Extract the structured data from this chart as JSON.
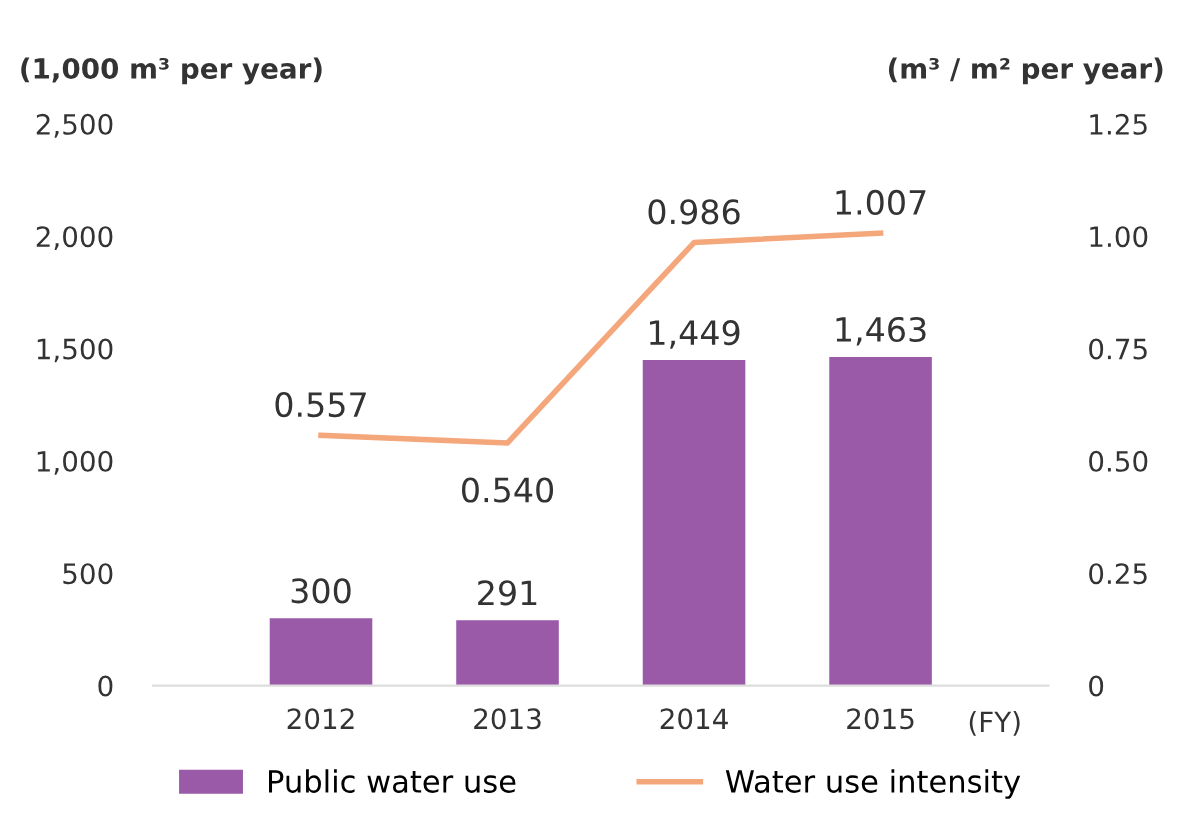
{
  "chart_data": {
    "type": "bar",
    "categories": [
      "2012",
      "2013",
      "2014",
      "2015"
    ],
    "series": [
      {
        "name": "Public water use",
        "color": "#9a5aa8",
        "values": [
          300,
          291,
          1449,
          1463
        ],
        "value_labels": [
          "300",
          "291",
          "1,449",
          "1,463"
        ]
      },
      {
        "name": "Water use intensity",
        "type": "line",
        "axis": "y2",
        "color": "#f5a77c",
        "values": [
          0.557,
          0.54,
          0.986,
          1.007
        ],
        "value_labels": [
          "0.557",
          "0.540",
          "0.986",
          "1.007"
        ]
      }
    ],
    "ylabel": "(1,000 m³ per year)",
    "y2label": "(m³ / m² per year)",
    "xlabel": "(FY)",
    "ylim": [
      0,
      2500
    ],
    "yticks": [
      0,
      {
        "value": 500,
        "label": "500"
      },
      {
        "value": 1000,
        "label": "1,000"
      },
      {
        "value": 1500,
        "label": "1,500"
      },
      {
        "value": 2000,
        "label": "2,000"
      },
      {
        "value": 2500,
        "label": "2,500"
      }
    ],
    "y2lim": [
      0,
      1.25
    ],
    "y2ticks": [
      0,
      0.25,
      {
        "value": 0.5,
        "label": "0.50"
      },
      0.75,
      {
        "value": 1.0,
        "label": "1.00"
      },
      1.25
    ],
    "legend": "bottom",
    "marker": "none",
    "line_style": "solid"
  }
}
